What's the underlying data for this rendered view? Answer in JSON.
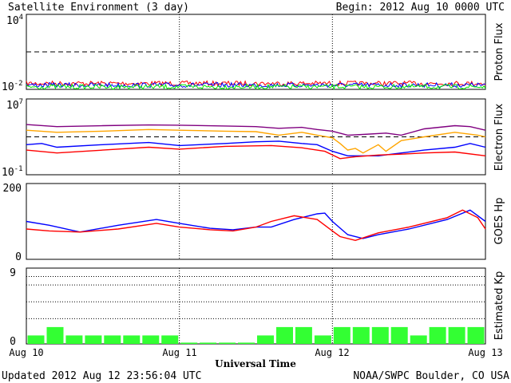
{
  "header": {
    "title": "Satellite Environment (3 day)",
    "begin": "Begin:  2012 Aug 10 0000 UTC"
  },
  "footer": {
    "updated": "Updated 2012 Aug 12 23:56:04 UTC",
    "credit": "NOAA/SWPC Boulder, CO USA"
  },
  "colors": {
    "red": "#ff0000",
    "blue": "#0000ff",
    "green": "#00ee00",
    "purple": "#800080",
    "orange": "#ffa500",
    "kp_bar": "#33ff33"
  },
  "chart_data": [
    {
      "id": "proton",
      "type": "line",
      "ylabel": "Proton Flux",
      "y_scale": "log",
      "ylim": [
        0.01,
        10000
      ],
      "tick_labels": {
        "top": "10",
        "top_exp": "4",
        "bottom": "10",
        "bottom_exp": "-2"
      },
      "threshold": 10,
      "x_days": [
        0,
        3
      ],
      "series": [
        {
          "color": "red",
          "points": [
            [
              0,
              0.03
            ],
            [
              3,
              0.03
            ]
          ]
        },
        {
          "color": "blue",
          "points": [
            [
              0,
              0.022
            ],
            [
              3,
              0.022
            ]
          ]
        },
        {
          "color": "green",
          "points": [
            [
              0,
              0.016
            ],
            [
              3,
              0.016
            ]
          ]
        }
      ]
    },
    {
      "id": "electron",
      "type": "line",
      "ylabel": "Electron Flux",
      "y_scale": "log",
      "ylim": [
        0.1,
        10000000
      ],
      "tick_labels": {
        "top": "10",
        "top_exp": "7",
        "bottom": "10",
        "bottom_exp": "-1"
      },
      "threshold": 1000,
      "series": [
        {
          "color": "purple",
          "points": [
            [
              0,
              20000
            ],
            [
              0.2,
              12000
            ],
            [
              0.5,
              15000
            ],
            [
              0.8,
              18000
            ],
            [
              1.0,
              17000
            ],
            [
              1.3,
              14000
            ],
            [
              1.5,
              12000
            ],
            [
              1.65,
              8000
            ],
            [
              1.8,
              10000
            ],
            [
              1.9,
              6000
            ],
            [
              2.0,
              4000
            ],
            [
              2.1,
              1500
            ],
            [
              2.2,
              1800
            ],
            [
              2.35,
              2500
            ],
            [
              2.45,
              1500
            ],
            [
              2.6,
              7000
            ],
            [
              2.8,
              15000
            ],
            [
              2.9,
              12000
            ],
            [
              3.0,
              5000
            ]
          ]
        },
        {
          "color": "orange",
          "points": [
            [
              0,
              5000
            ],
            [
              0.2,
              3000
            ],
            [
              0.5,
              4000
            ],
            [
              0.8,
              6000
            ],
            [
              1.0,
              5000
            ],
            [
              1.3,
              4000
            ],
            [
              1.5,
              3500
            ],
            [
              1.65,
              1500
            ],
            [
              1.8,
              3000
            ],
            [
              1.9,
              1500
            ],
            [
              2.0,
              800
            ],
            [
              2.05,
              200
            ],
            [
              2.1,
              40
            ],
            [
              2.15,
              60
            ],
            [
              2.2,
              20
            ],
            [
              2.3,
              150
            ],
            [
              2.35,
              30
            ],
            [
              2.45,
              400
            ],
            [
              2.6,
              1000
            ],
            [
              2.8,
              3000
            ],
            [
              2.95,
              1500
            ],
            [
              3.0,
              1000
            ]
          ]
        },
        {
          "color": "blue",
          "points": [
            [
              0,
              150
            ],
            [
              0.1,
              200
            ],
            [
              0.2,
              80
            ],
            [
              0.5,
              150
            ],
            [
              0.8,
              250
            ],
            [
              1.0,
              120
            ],
            [
              1.3,
              200
            ],
            [
              1.5,
              300
            ],
            [
              1.65,
              350
            ],
            [
              1.8,
              200
            ],
            [
              1.9,
              150
            ],
            [
              2.0,
              30
            ],
            [
              2.1,
              10
            ],
            [
              2.3,
              10
            ],
            [
              2.45,
              20
            ],
            [
              2.6,
              40
            ],
            [
              2.8,
              80
            ],
            [
              2.9,
              200
            ],
            [
              3.0,
              80
            ]
          ]
        },
        {
          "color": "red",
          "points": [
            [
              0,
              40
            ],
            [
              0.2,
              20
            ],
            [
              0.5,
              40
            ],
            [
              0.8,
              80
            ],
            [
              1.0,
              50
            ],
            [
              1.3,
              100
            ],
            [
              1.6,
              120
            ],
            [
              1.8,
              70
            ],
            [
              1.95,
              30
            ],
            [
              2.05,
              5
            ],
            [
              2.15,
              8
            ],
            [
              2.3,
              12
            ],
            [
              2.45,
              15
            ],
            [
              2.6,
              20
            ],
            [
              2.8,
              25
            ],
            [
              3.0,
              10
            ]
          ]
        }
      ]
    },
    {
      "id": "goes_hp",
      "type": "line",
      "ylabel": "GOES Hp",
      "y_scale": "linear",
      "ylim": [
        0,
        200
      ],
      "tick_labels": {
        "top": "200",
        "bottom": "0"
      },
      "series": [
        {
          "color": "blue",
          "points": [
            [
              0,
              100
            ],
            [
              0.15,
              90
            ],
            [
              0.35,
              72
            ],
            [
              0.6,
              90
            ],
            [
              0.85,
              105
            ],
            [
              1.0,
              95
            ],
            [
              1.2,
              82
            ],
            [
              1.35,
              78
            ],
            [
              1.5,
              85
            ],
            [
              1.6,
              85
            ],
            [
              1.75,
              105
            ],
            [
              1.9,
              120
            ],
            [
              1.95,
              122
            ],
            [
              2.0,
              100
            ],
            [
              2.1,
              65
            ],
            [
              2.2,
              55
            ],
            [
              2.3,
              65
            ],
            [
              2.5,
              80
            ],
            [
              2.75,
              105
            ],
            [
              2.9,
              130
            ],
            [
              3.0,
              100
            ]
          ]
        },
        {
          "color": "red",
          "points": [
            [
              0,
              80
            ],
            [
              0.15,
              75
            ],
            [
              0.35,
              72
            ],
            [
              0.6,
              80
            ],
            [
              0.85,
              95
            ],
            [
              1.0,
              85
            ],
            [
              1.2,
              78
            ],
            [
              1.35,
              75
            ],
            [
              1.5,
              85
            ],
            [
              1.6,
              100
            ],
            [
              1.75,
              115
            ],
            [
              1.9,
              105
            ],
            [
              2.0,
              75
            ],
            [
              2.05,
              60
            ],
            [
              2.15,
              50
            ],
            [
              2.3,
              70
            ],
            [
              2.5,
              85
            ],
            [
              2.75,
              110
            ],
            [
              2.85,
              130
            ],
            [
              2.95,
              110
            ],
            [
              3.0,
              80
            ]
          ]
        }
      ]
    },
    {
      "id": "kp",
      "type": "bar",
      "ylabel": "Estimated Kp",
      "ylim": [
        0,
        9
      ],
      "tick_labels": {
        "top": "9",
        "bottom": "0"
      },
      "values": [
        1,
        2,
        1,
        1,
        1,
        1,
        1,
        1,
        0.15,
        0.15,
        0.15,
        0.15,
        1,
        2,
        2,
        1,
        2,
        2,
        2,
        2,
        1,
        2,
        2,
        2
      ]
    }
  ],
  "x_axis": {
    "ticks": [
      "Aug 10",
      "Aug 11",
      "Aug 12",
      "Aug 13"
    ],
    "label": "Universal Time"
  }
}
